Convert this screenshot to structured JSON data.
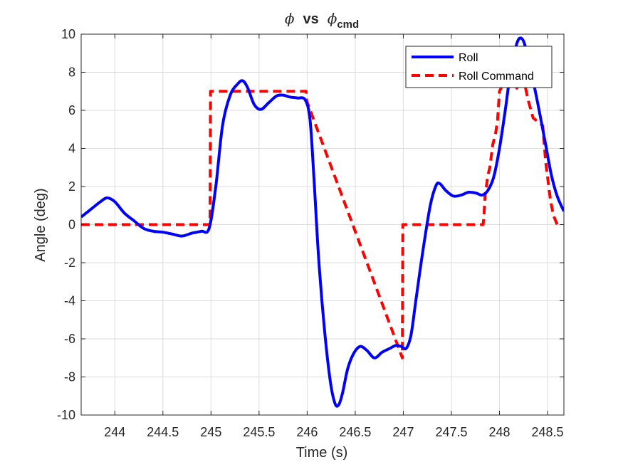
{
  "chart_data": {
    "type": "line",
    "title": {
      "phi": "ϕ",
      "vs": "vs",
      "phi2": "ϕ",
      "sub": "cmd"
    },
    "xlabel": "Time (s)",
    "ylabel": "Angle (deg)",
    "xlim": [
      243.65,
      248.67
    ],
    "ylim": [
      -10,
      10
    ],
    "xticks": [
      244,
      244.5,
      245,
      245.5,
      246,
      246.5,
      247,
      247.5,
      248,
      248.5
    ],
    "xtick_labels": [
      "244",
      "244.5",
      "245",
      "245.5",
      "246",
      "246.5",
      "247",
      "247.5",
      "248",
      "248.5"
    ],
    "yticks": [
      -10,
      -8,
      -6,
      -4,
      -2,
      0,
      2,
      4,
      6,
      8,
      10
    ],
    "ytick_labels": [
      "-10",
      "-8",
      "-6",
      "-4",
      "-2",
      "0",
      "2",
      "4",
      "6",
      "8",
      "10"
    ],
    "grid": true,
    "legend_position": "top-right",
    "series": [
      {
        "name": "Roll",
        "color": "#0000FF",
        "style": "solid",
        "x": [
          243.65,
          243.75,
          243.85,
          243.92,
          244.0,
          244.1,
          244.2,
          244.3,
          244.4,
          244.5,
          244.6,
          244.7,
          244.8,
          244.9,
          244.98,
          245.05,
          245.12,
          245.2,
          245.28,
          245.33,
          245.38,
          245.45,
          245.52,
          245.6,
          245.68,
          245.75,
          245.82,
          245.9,
          245.98,
          246.03,
          246.07,
          246.12,
          246.18,
          246.24,
          246.29,
          246.33,
          246.37,
          246.42,
          246.48,
          246.55,
          246.62,
          246.7,
          246.78,
          246.86,
          246.92,
          246.98,
          247.03,
          247.08,
          247.13,
          247.2,
          247.28,
          247.34,
          247.38,
          247.44,
          247.52,
          247.6,
          247.68,
          247.76,
          247.82,
          247.88,
          247.94,
          248.0,
          248.06,
          248.12,
          248.18,
          248.22,
          248.26,
          248.3,
          248.36,
          248.42,
          248.48,
          248.54,
          248.6,
          248.67
        ],
        "y": [
          0.4,
          0.8,
          1.2,
          1.4,
          1.2,
          0.6,
          0.2,
          -0.2,
          -0.35,
          -0.4,
          -0.5,
          -0.6,
          -0.45,
          -0.35,
          -0.2,
          2.0,
          5.2,
          6.8,
          7.4,
          7.55,
          7.2,
          6.3,
          6.05,
          6.4,
          6.75,
          6.8,
          6.7,
          6.65,
          6.55,
          5.5,
          2.5,
          -1.8,
          -5.5,
          -8.2,
          -9.4,
          -9.45,
          -8.8,
          -7.6,
          -6.8,
          -6.4,
          -6.6,
          -7.0,
          -6.7,
          -6.5,
          -6.35,
          -6.4,
          -6.5,
          -5.8,
          -4.0,
          -1.5,
          1.0,
          2.05,
          2.15,
          1.8,
          1.5,
          1.55,
          1.7,
          1.65,
          1.55,
          1.8,
          2.5,
          4.0,
          6.0,
          8.2,
          9.5,
          9.8,
          9.5,
          8.5,
          7.3,
          5.8,
          4.2,
          2.6,
          1.5,
          0.7
        ]
      },
      {
        "name": "Roll Command",
        "color": "#FF0000",
        "style": "dashed",
        "x": [
          243.65,
          244.99,
          244.995,
          245.99,
          245.995,
          246.99,
          246.995,
          247.83,
          247.84,
          247.85,
          247.88,
          247.9,
          247.93,
          247.96,
          247.98,
          248.0,
          248.03,
          248.06,
          248.1,
          248.14,
          248.17,
          248.2,
          248.23,
          248.27,
          248.3,
          248.35,
          248.4,
          248.45,
          248.48,
          248.5,
          248.53,
          248.56,
          248.6
        ],
        "y": [
          0,
          0,
          7,
          7,
          6.5,
          -7,
          0,
          0,
          0.6,
          1.5,
          2.6,
          3.0,
          4.2,
          4.8,
          5.5,
          7.0,
          7.3,
          7.5,
          7.3,
          7.2,
          7.1,
          7.3,
          7.4,
          7.2,
          6.5,
          5.6,
          5.4,
          5.2,
          3.3,
          2.5,
          1.3,
          0.5,
          0
        ]
      }
    ]
  }
}
